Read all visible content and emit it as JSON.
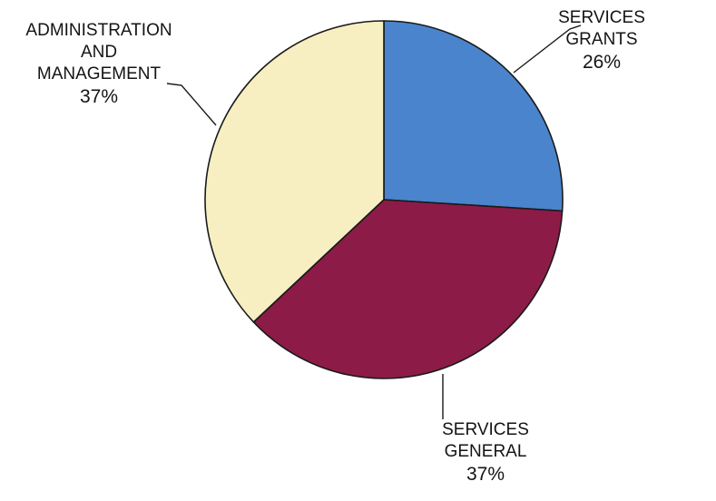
{
  "chart_data": {
    "type": "pie",
    "slices": [
      {
        "label_lines": [
          "SERVICES",
          "GRANTS"
        ],
        "value": 26,
        "display": "26%",
        "color": "#4a84cc"
      },
      {
        "label_lines": [
          "SERVICES",
          "GENERAL"
        ],
        "value": 37,
        "display": "37%",
        "color": "#8c1b48"
      },
      {
        "label_lines": [
          "ADMINISTRATION",
          "AND",
          "MANAGEMENT"
        ],
        "value": 37,
        "display": "37%",
        "color": "#f7efc1"
      }
    ],
    "start_angle": "12 o'clock",
    "direction": "clockwise"
  }
}
